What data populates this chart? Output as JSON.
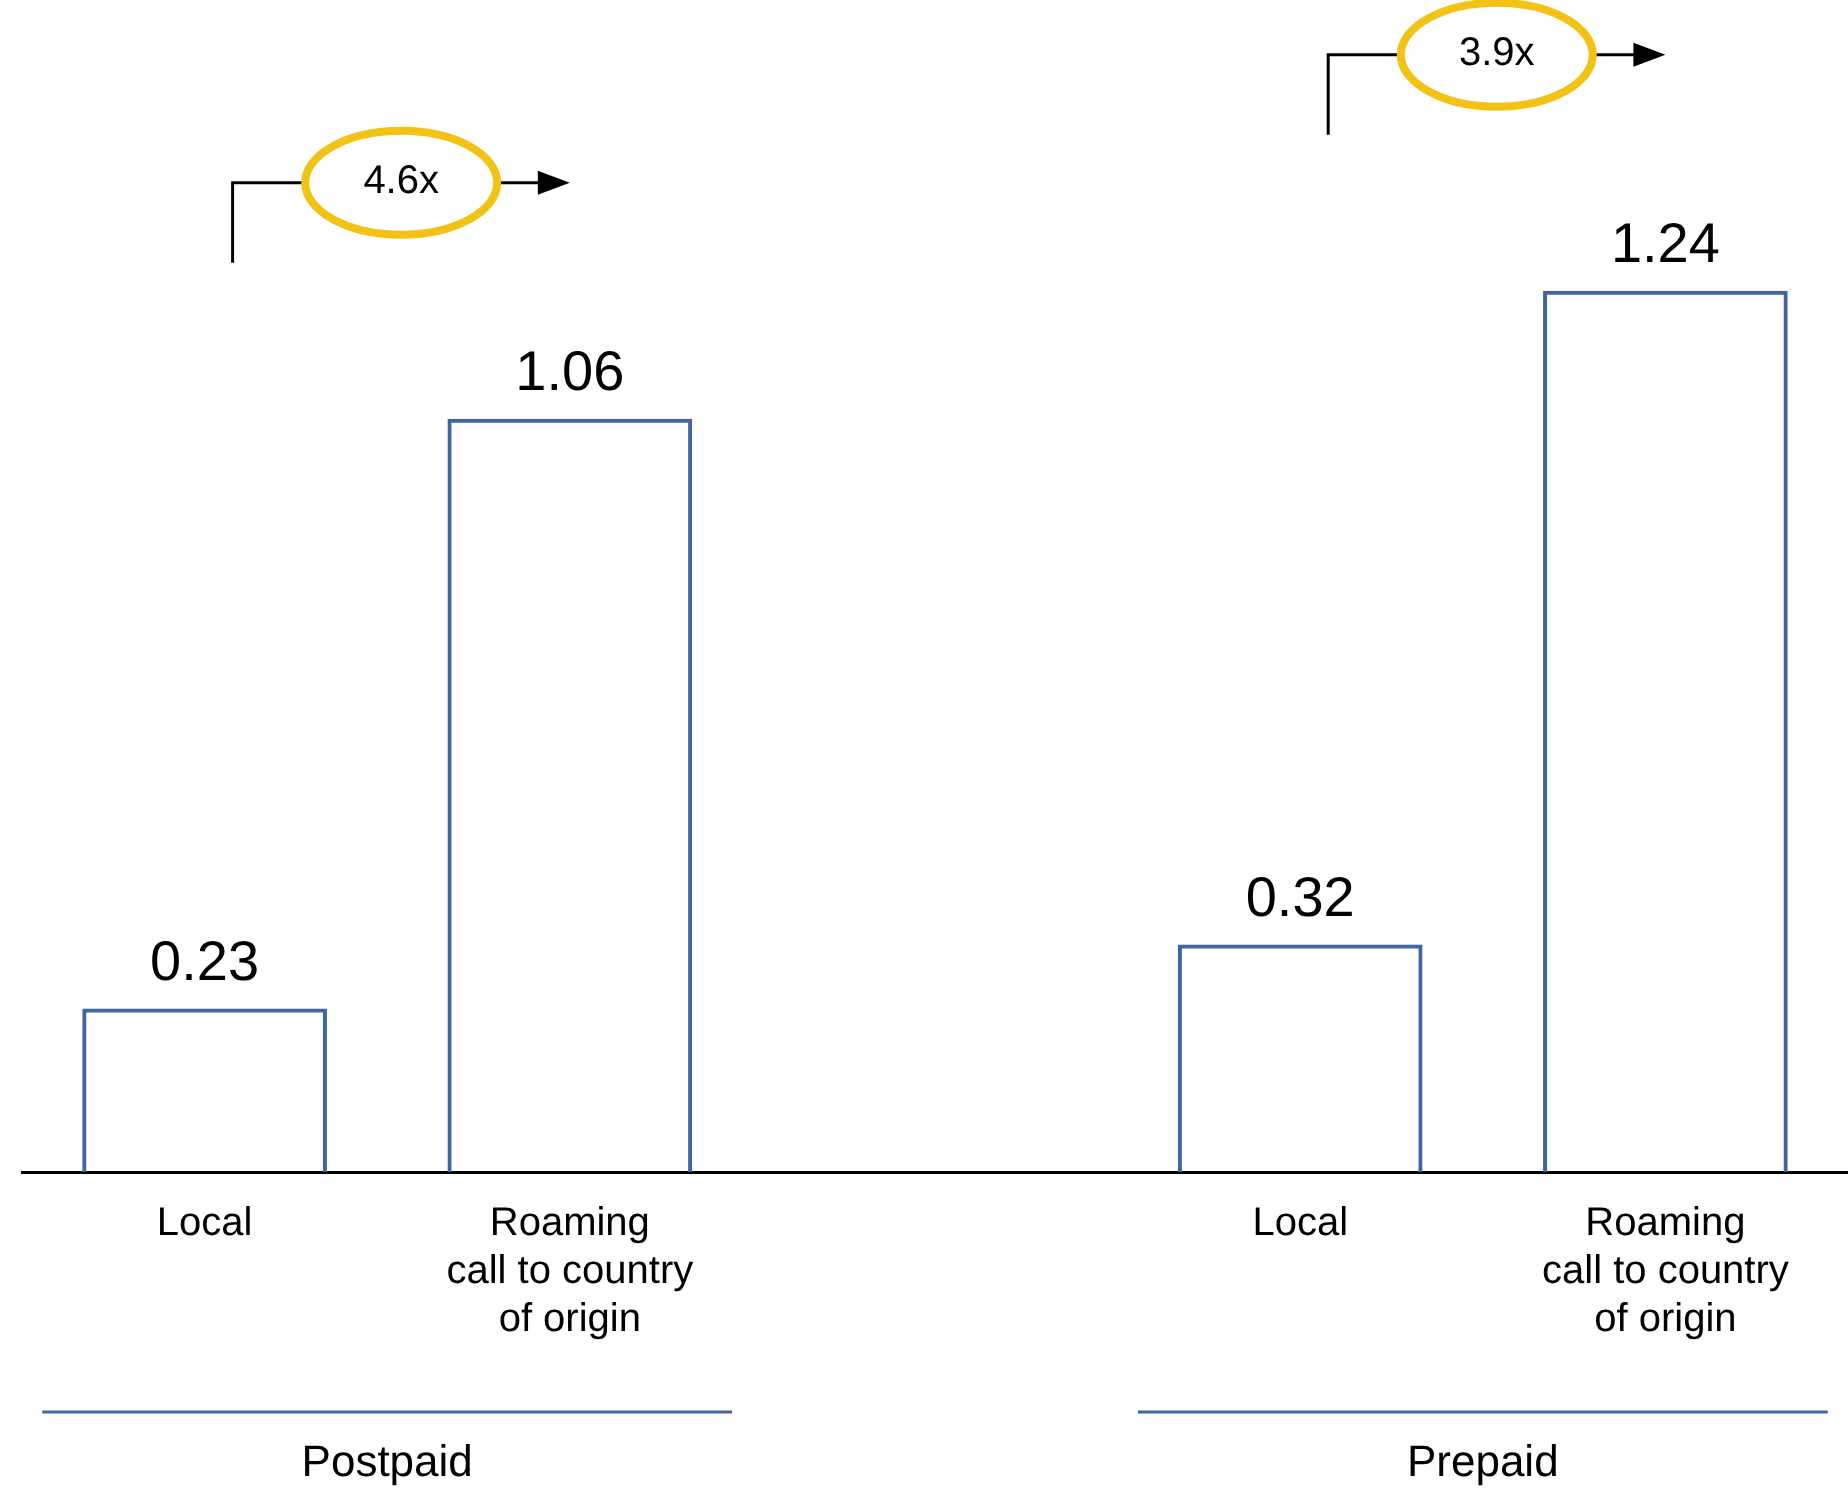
{
  "chart_data": {
    "type": "bar",
    "categories": [
      "Local",
      "Roaming call to country of origin",
      null,
      "Local",
      "Roaming call to country of origin"
    ],
    "values": [
      0.23,
      1.06,
      null,
      0.32,
      1.24
    ],
    "color": "#41659e",
    "data_labels": true,
    "annotations": [
      "4.6x",
      "3.9x",
      "Postpaid",
      "Prepaid"
    ]
  }
}
